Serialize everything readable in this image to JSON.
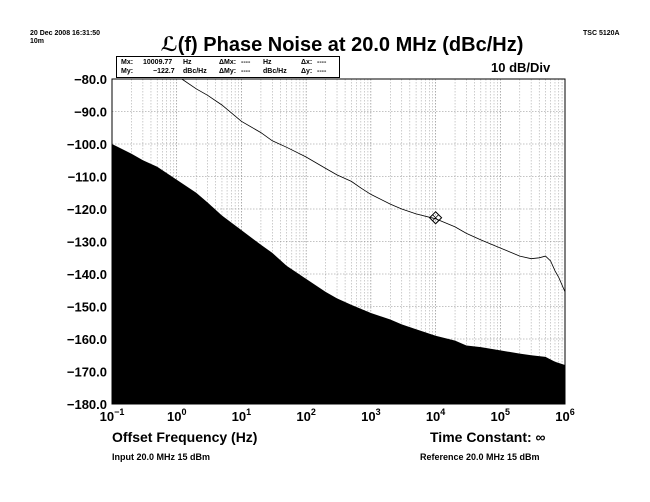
{
  "header": {
    "timestamp_line1": "20 Dec 2008 16:31:50",
    "timestamp_line2": "10m",
    "instrument": "TSC 5120A",
    "scale": "10 dB/Div"
  },
  "marker": {
    "mx_label": "Mx:",
    "mx_value": "10009.77",
    "mx_unit": "Hz",
    "my_label": "My:",
    "my_value": "−122.7",
    "my_unit": "dBc/Hz",
    "dmx_label": "ΔMx:",
    "dmx_value": "----",
    "dmx_unit": "Hz",
    "dmy_label": "ΔMy:",
    "dmy_value": "----",
    "dmy_unit": "dBc/Hz",
    "dx_label": "Δx:",
    "dx_value": "----",
    "dy_label": "Δy:",
    "dy_value": "----"
  },
  "footer": {
    "time_constant": "Time Constant: ∞",
    "input_info": "Input 20.0 MHz 15 dBm",
    "reference_info": "Reference 20.0 MHz 15 dBm"
  },
  "chart_data": {
    "type": "line",
    "title": "ℒ(f) Phase Noise at 20.0 MHz (dBc/Hz)",
    "xlabel": "Offset Frequency (Hz)",
    "ylabel": "",
    "x_scale": "log",
    "xlim": [
      0.1,
      1000000
    ],
    "ylim": [
      -180,
      -80
    ],
    "grid": true,
    "x_ticks": [
      {
        "base": "10",
        "exp": "−1",
        "value": 0.1
      },
      {
        "base": "10",
        "exp": "0",
        "value": 1
      },
      {
        "base": "10",
        "exp": "1",
        "value": 10
      },
      {
        "base": "10",
        "exp": "2",
        "value": 100
      },
      {
        "base": "10",
        "exp": "3",
        "value": 1000
      },
      {
        "base": "10",
        "exp": "4",
        "value": 10000
      },
      {
        "base": "10",
        "exp": "5",
        "value": 100000
      },
      {
        "base": "10",
        "exp": "6",
        "value": 1000000
      }
    ],
    "y_ticks": [
      {
        "label": "−80.0",
        "value": -80
      },
      {
        "label": "−90.0",
        "value": -90
      },
      {
        "label": "−100.0",
        "value": -100
      },
      {
        "label": "−110.0",
        "value": -110
      },
      {
        "label": "−120.0",
        "value": -120
      },
      {
        "label": "−130.0",
        "value": -130
      },
      {
        "label": "−140.0",
        "value": -140
      },
      {
        "label": "−150.0",
        "value": -150
      },
      {
        "label": "−160.0",
        "value": -160
      },
      {
        "label": "−170.0",
        "value": -170
      },
      {
        "label": "−180.0",
        "value": -180
      }
    ],
    "series": [
      {
        "role": "measurement",
        "color": "#000000",
        "x": [
          1.2,
          2,
          3,
          5,
          10,
          20,
          30,
          50,
          100,
          200,
          300,
          500,
          700,
          1000,
          2000,
          3000,
          5000,
          10000,
          20000,
          30000,
          50000,
          100000,
          200000,
          300000,
          400000,
          500000,
          600000,
          700000,
          800000,
          1000000
        ],
        "y": [
          -80,
          -83,
          -85,
          -88,
          -93,
          -96.5,
          -99,
          -101,
          -104,
          -107.5,
          -109.5,
          -111.5,
          -113.5,
          -115.5,
          -118.5,
          -120,
          -121.5,
          -123,
          -125.5,
          -127.5,
          -129.5,
          -132,
          -134.5,
          -135.3,
          -135,
          -134.5,
          -136,
          -139,
          -141,
          -145.5
        ]
      },
      {
        "role": "noise floor",
        "color": "#000000",
        "fill": true,
        "x": [
          0.1,
          0.2,
          0.3,
          0.5,
          1,
          2,
          3,
          5,
          10,
          20,
          30,
          50,
          100,
          200,
          300,
          500,
          1000,
          2000,
          3000,
          5000,
          10000,
          20000,
          30000,
          50000,
          100000,
          200000,
          300000,
          500000,
          700000,
          1000000
        ],
        "y": [
          -100,
          -103,
          -105,
          -107,
          -111,
          -115,
          -118,
          -122,
          -126.5,
          -131,
          -133.5,
          -137.5,
          -141.5,
          -145.5,
          -147.5,
          -149.5,
          -152,
          -154,
          -155.5,
          -157,
          -159,
          -160.5,
          -162,
          -162.5,
          -163.5,
          -164.5,
          -165,
          -165.5,
          -167,
          -168
        ]
      }
    ],
    "marker_point": {
      "x": 10009.77,
      "y": -122.7
    }
  }
}
